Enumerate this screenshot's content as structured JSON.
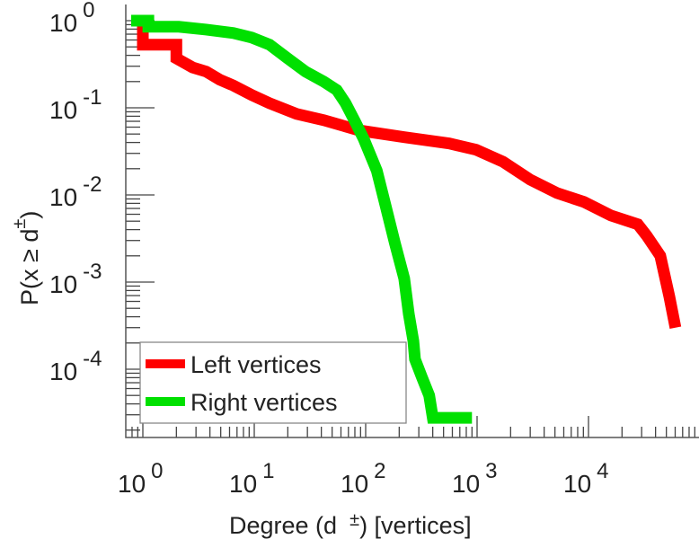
{
  "chart_data": {
    "type": "line",
    "scale": {
      "x": "log",
      "y": "log"
    },
    "xlabel": "Degree (d ±) [vertices]",
    "xlabel_parts": {
      "main": "Degree (d",
      "sup": "±",
      "tail": ") [vertices]"
    },
    "ylabel_parts": {
      "main": "P(x ≥ d",
      "sup": "±",
      "tail": ")"
    },
    "xlim": [
      0.71,
      100000
    ],
    "ylim": [
      1.64e-05,
      1.55
    ],
    "x_ticks": [
      {
        "base": "10",
        "exp": "0",
        "value": 1
      },
      {
        "base": "10",
        "exp": "1",
        "value": 10
      },
      {
        "base": "10",
        "exp": "2",
        "value": 100
      },
      {
        "base": "10",
        "exp": "3",
        "value": 1000
      },
      {
        "base": "10",
        "exp": "4",
        "value": 10000
      }
    ],
    "y_ticks": [
      {
        "base": "10",
        "exp": "0",
        "value": 1
      },
      {
        "base": "10",
        "exp": "-1",
        "value": 0.1
      },
      {
        "base": "10",
        "exp": "-2",
        "value": 0.01
      },
      {
        "base": "10",
        "exp": "-3",
        "value": 0.001
      },
      {
        "base": "10",
        "exp": "-4",
        "value": 0.0001
      }
    ],
    "legend_position": "bottom-left",
    "series": [
      {
        "name": "Left vertices",
        "color": "#ff0000",
        "x": [
          0.75,
          1,
          1,
          2,
          2,
          2.8,
          3.7,
          4.9,
          6.5,
          9.5,
          13.7,
          24,
          42,
          88,
          222,
          562,
          980,
          1710,
          2990,
          5220,
          9120,
          15900,
          27700,
          33300,
          44100,
          53200,
          60400
        ],
        "y": [
          1.0,
          1.0,
          0.53,
          0.53,
          0.37,
          0.29,
          0.26,
          0.21,
          0.18,
          0.14,
          0.113,
          0.085,
          0.072,
          0.055,
          0.046,
          0.039,
          0.033,
          0.024,
          0.015,
          0.0105,
          0.0083,
          0.0058,
          0.0046,
          0.0034,
          0.002,
          0.00068,
          0.0003
        ]
      },
      {
        "name": "Right vertices",
        "color": "#00e000",
        "x": [
          0.75,
          1.12,
          1.12,
          2.1,
          3.7,
          6.5,
          9.5,
          13.7,
          19.9,
          28.8,
          42,
          55,
          66,
          80,
          96,
          126,
          152,
          183,
          222,
          244,
          268,
          277,
          320,
          372,
          400,
          900
        ],
        "y": [
          1.0,
          1.0,
          0.85,
          0.85,
          0.79,
          0.72,
          0.64,
          0.53,
          0.37,
          0.26,
          0.2,
          0.16,
          0.113,
          0.07,
          0.044,
          0.019,
          0.0073,
          0.0028,
          0.0011,
          0.00043,
          0.00021,
          0.00013,
          8.1e-05,
          5e-05,
          2.77e-05,
          2.77e-05
        ]
      }
    ]
  }
}
